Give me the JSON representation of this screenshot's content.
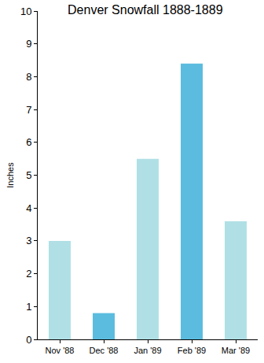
{
  "chart_data": {
    "type": "bar",
    "title": "Denver Snowfall 1888-1889",
    "y_label": "Inches",
    "categories": [
      "Nov '88",
      "Dec '88",
      "Jan '89",
      "Feb '89",
      "Mar '89"
    ],
    "values": [
      3,
      0.8,
      5.5,
      8.4,
      3.6
    ],
    "colors": [
      "#b0e0e6",
      "#5bbcdf",
      "#b0e0e6",
      "#5bbcdf",
      "#b0e0e6"
    ],
    "ylim": [
      0,
      10
    ],
    "yticks": [
      0,
      1,
      2,
      3,
      4,
      5,
      6,
      7,
      8,
      9,
      10
    ],
    "grid": false
  }
}
